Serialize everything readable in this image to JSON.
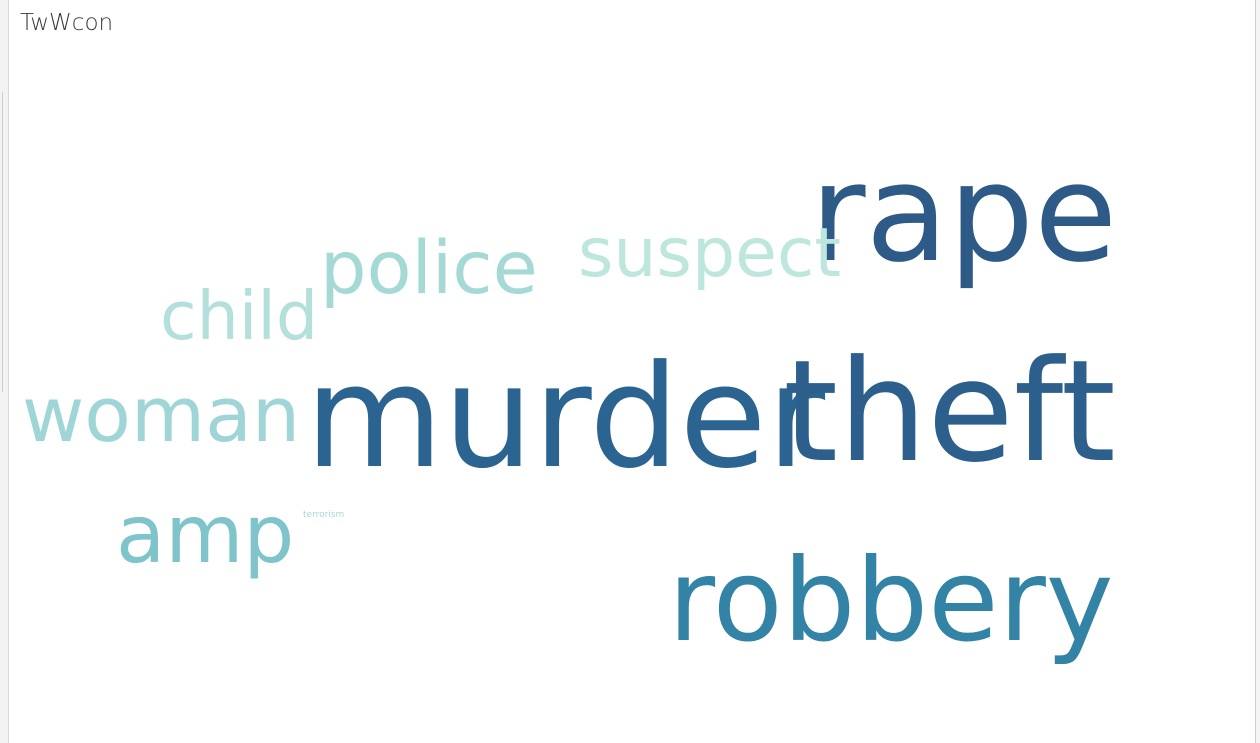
{
  "sheet": {
    "title": "TwWcon"
  },
  "chart_data": {
    "type": "wordcloud",
    "words": [
      {
        "text": "murder",
        "weight": 100,
        "color": "#2b6491"
      },
      {
        "text": "theft",
        "weight": 99,
        "color": "#2c5f8c"
      },
      {
        "text": "rape",
        "weight": 95,
        "color": "#2d5a87"
      },
      {
        "text": "robbery",
        "weight": 80,
        "color": "#3383a6"
      },
      {
        "text": "amp",
        "weight": 55,
        "color": "#7fc3cb"
      },
      {
        "text": "woman",
        "weight": 52,
        "color": "#9fd5d6"
      },
      {
        "text": "police",
        "weight": 50,
        "color": "#a4d9d6"
      },
      {
        "text": "suspect",
        "weight": 46,
        "color": "#bde6dd"
      },
      {
        "text": "child",
        "weight": 45,
        "color": "#b4e0dc"
      },
      {
        "text": "terrorism",
        "weight": 3,
        "color": "#a8d8d4"
      }
    ]
  }
}
